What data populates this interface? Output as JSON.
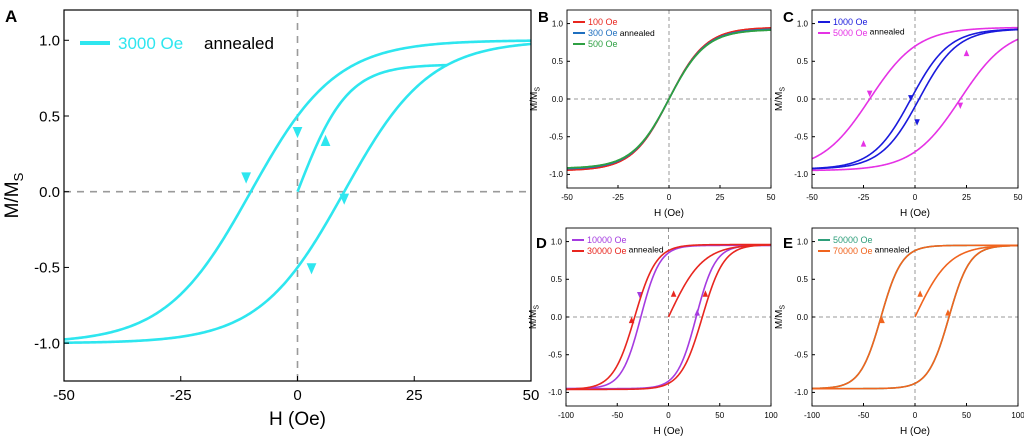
{
  "chart_data": [
    {
      "panel": "A",
      "type": "line",
      "title": "",
      "xlabel": "H (Oe)",
      "ylabel_main": "M/M",
      "ylabel_sub": "S",
      "xlim": [
        -50,
        50
      ],
      "ylim": [
        -1.25,
        1.2
      ],
      "xticks": [
        -50,
        -25,
        0,
        25,
        50
      ],
      "yticks": [
        -1.0,
        -0.5,
        0.0,
        0.5,
        1.0
      ],
      "xtick_labels": [
        "-50",
        "-25",
        "0",
        "25",
        "50"
      ],
      "ytick_labels": [
        "-1.0",
        "-0.5",
        "0.0",
        "0.5",
        "1.0"
      ],
      "zero_lines": true,
      "legend_position": "top-left",
      "annotation": "annealed",
      "series": [
        {
          "name": "3000 Oe",
          "color": "#2ee6ef",
          "hc": 10,
          "mr": 0.5,
          "ms": 1.0,
          "initial": true,
          "arrows": [
            [
              -11,
              0.1
            ],
            [
              0,
              0.4
            ],
            [
              10,
              -0.04
            ],
            [
              3,
              -0.5
            ],
            [
              6,
              0.33
            ]
          ]
        }
      ]
    },
    {
      "panel": "B",
      "type": "line",
      "xlabel": "H (Oe)",
      "ylabel_main": "M/M",
      "ylabel_sub": "S",
      "xlim": [
        -50,
        50
      ],
      "ylim": [
        -1.18,
        1.18
      ],
      "xticks": [
        -50,
        -25,
        0,
        25,
        50
      ],
      "yticks": [
        -1.0,
        -0.5,
        0.0,
        0.5,
        1.0
      ],
      "xtick_labels": [
        "-50",
        "-25",
        "0",
        "25",
        "50"
      ],
      "ytick_labels": [
        "-1.0",
        "-0.5",
        "0.0",
        "0.5",
        "1.0"
      ],
      "zero_lines": true,
      "legend_position": "top-left",
      "annotation": "annealed",
      "series": [
        {
          "name": "100 Oe",
          "color": "#e8261f",
          "hc": 0,
          "mr": 0,
          "ms": 0.95,
          "initial": false,
          "arrows": []
        },
        {
          "name": "300 Oe",
          "color": "#1f6fbf",
          "hc": 0,
          "mr": 0,
          "ms": 0.93,
          "initial": false,
          "arrows": []
        },
        {
          "name": "500 Oe",
          "color": "#2ea043",
          "hc": 0,
          "mr": 0,
          "ms": 0.92,
          "initial": false,
          "arrows": []
        }
      ]
    },
    {
      "panel": "C",
      "type": "line",
      "xlabel": "H (Oe)",
      "ylabel_main": "M/M",
      "ylabel_sub": "S",
      "xlim": [
        -50,
        50
      ],
      "ylim": [
        -1.18,
        1.18
      ],
      "xticks": [
        -50,
        -25,
        0,
        25,
        50
      ],
      "yticks": [
        -1.0,
        -0.5,
        0.0,
        0.5,
        1.0
      ],
      "xtick_labels": [
        "-50",
        "-25",
        "0",
        "25",
        "50"
      ],
      "ytick_labels": [
        "-1.0",
        "-0.5",
        "0.0",
        "0.5",
        "1.0"
      ],
      "zero_lines": true,
      "legend_position": "top-left",
      "annotation": "annealed",
      "series": [
        {
          "name": "1000 Oe",
          "color": "#1a1adc",
          "hc": 2,
          "mr": 0.1,
          "ms": 0.93,
          "initial": false,
          "arrows": [
            [
              -2,
              0.02
            ],
            [
              1,
              -0.3
            ]
          ]
        },
        {
          "name": "5000 Oe",
          "color": "#e532e5",
          "hc": 22,
          "mr": 0.7,
          "ms": 0.95,
          "initial": false,
          "arrows": [
            [
              -22,
              0.08
            ],
            [
              22,
              -0.08
            ],
            [
              -25,
              -0.6
            ],
            [
              25,
              0.6
            ]
          ]
        }
      ]
    },
    {
      "panel": "D",
      "type": "line",
      "xlabel": "H (Oe)",
      "ylabel_main": "M/M",
      "ylabel_sub": "S",
      "xlim": [
        -100,
        100
      ],
      "ylim": [
        -1.18,
        1.18
      ],
      "xticks": [
        -100,
        -50,
        0,
        50,
        100
      ],
      "yticks": [
        -1.0,
        -0.5,
        0.0,
        0.5,
        1.0
      ],
      "xtick_labels": [
        "-100",
        "-50",
        "0",
        "50",
        "100"
      ],
      "ytick_labels": [
        "-1.0",
        "-0.5",
        "0.0",
        "0.5",
        "1.0"
      ],
      "zero_lines": true,
      "legend_position": "top-left",
      "annotation": "annealed",
      "series": [
        {
          "name": "10000 Oe",
          "color": "#a53be0",
          "hc": 27,
          "mr": 0.85,
          "ms": 0.95,
          "initial": false,
          "arrows": [
            [
              -28,
              0.3
            ],
            [
              28,
              0.05
            ]
          ]
        },
        {
          "name": "30000 Oe",
          "color": "#e8261f",
          "hc": 33,
          "mr": 0.88,
          "ms": 0.96,
          "initial": true,
          "arrows": [
            [
              -36,
              -0.05
            ],
            [
              36,
              0.3
            ],
            [
              5,
              0.3
            ]
          ]
        }
      ]
    },
    {
      "panel": "E",
      "type": "line",
      "xlabel": "H (Oe)",
      "ylabel_main": "M/M",
      "ylabel_sub": "S",
      "xlim": [
        -100,
        100
      ],
      "ylim": [
        -1.18,
        1.18
      ],
      "xticks": [
        -100,
        -50,
        0,
        50,
        100
      ],
      "yticks": [
        -1.0,
        -0.5,
        0.0,
        0.5,
        1.0
      ],
      "xtick_labels": [
        "-100",
        "-50",
        "0",
        "50",
        "100"
      ],
      "ytick_labels": [
        "-1.0",
        "-0.5",
        "0.0",
        "0.5",
        "1.0"
      ],
      "zero_lines": true,
      "legend_position": "top-left",
      "annotation": "annealed",
      "series": [
        {
          "name": "50000 Oe",
          "color": "#2e9e7a",
          "hc": 33,
          "mr": 0.88,
          "ms": 0.95,
          "initial": false,
          "arrows": []
        },
        {
          "name": "70000 Oe",
          "color": "#f0641e",
          "hc": 33,
          "mr": 0.88,
          "ms": 0.95,
          "initial": true,
          "arrows": [
            [
              -32,
              -0.05
            ],
            [
              32,
              0.05
            ],
            [
              5,
              0.3
            ]
          ]
        }
      ]
    }
  ]
}
